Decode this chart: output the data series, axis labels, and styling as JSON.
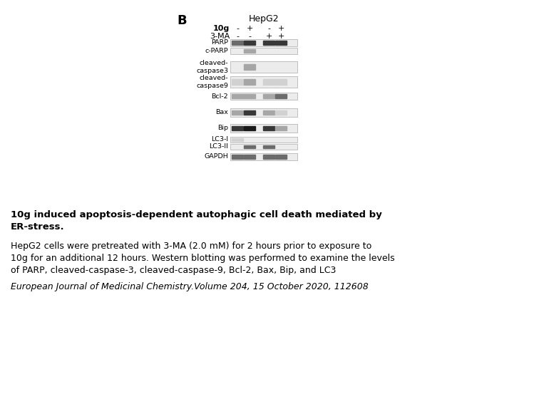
{
  "panel_label": "B",
  "cell_line": "HepG2",
  "row1_label": "10g",
  "row2_label": "3-MA",
  "row1_values": [
    "-",
    "+",
    "-",
    "+"
  ],
  "row2_values": [
    "-",
    "-",
    "+",
    "+"
  ],
  "title_bold": "10g induced apoptosis-dependent autophagic cell death mediated by\nER-stress.",
  "body_text": "HepG2 cells were pretreated with 3-MA (2.0 mM) for 2 hours prior to exposure to\n10g for an additional 12 hours. Western blotting was performed to examine the levels\nof PARP, cleaved-caspase-3, cleaved-caspase-9, Bcl-2, Bax, Bip, and LC3",
  "citation": "European Journal of Medicinal Chemistry.Volume 204, 15 October 2020, 112608",
  "bg_color": "#ffffff"
}
